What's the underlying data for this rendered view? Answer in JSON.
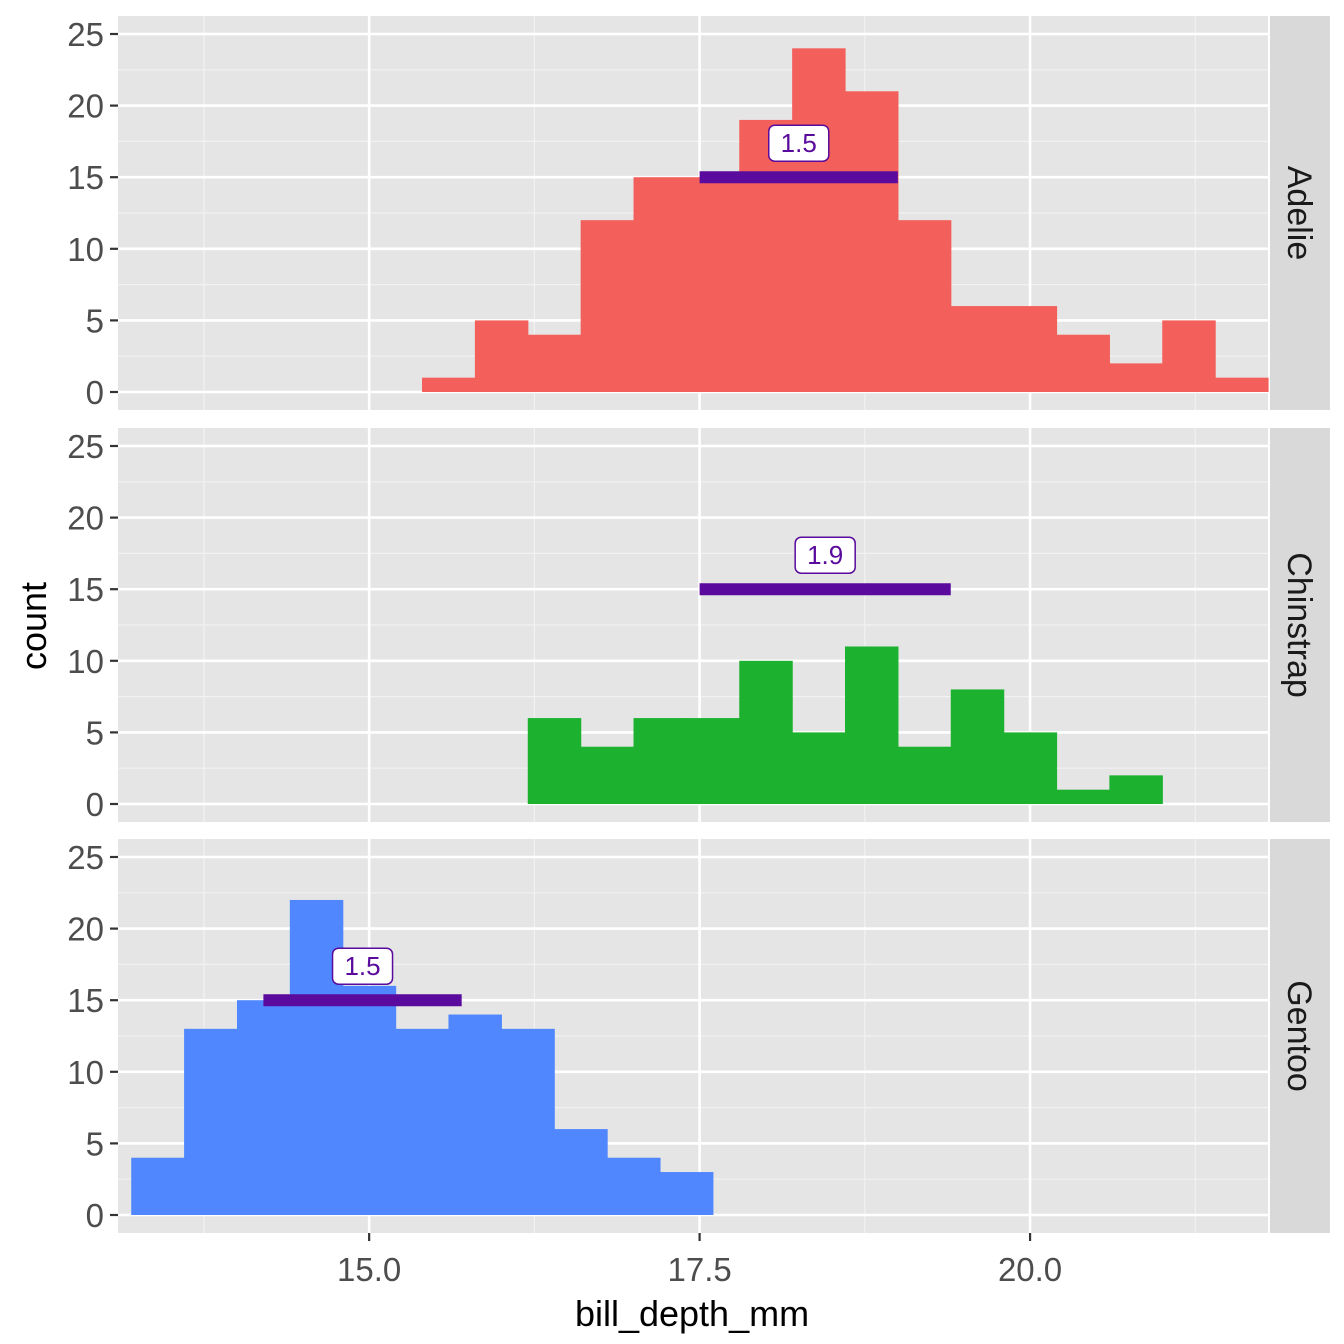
{
  "chart_data": {
    "type": "bar",
    "subtype": "faceted-histogram",
    "xlabel": "bill_depth_mm",
    "ylabel": "count",
    "xlim": [
      13.1,
      21.8
    ],
    "ylim": [
      0,
      25
    ],
    "x_ticks": [
      {
        "value": 15.0,
        "label": "15.0"
      },
      {
        "value": 17.5,
        "label": "17.5"
      },
      {
        "value": 20.0,
        "label": "20.0"
      }
    ],
    "y_ticks": [
      {
        "value": 0,
        "label": "0"
      },
      {
        "value": 5,
        "label": "5"
      },
      {
        "value": 10,
        "label": "10"
      },
      {
        "value": 15,
        "label": "15"
      },
      {
        "value": 20,
        "label": "20"
      },
      {
        "value": 25,
        "label": "25"
      }
    ],
    "bin_width": 0.4,
    "grid": true,
    "range_bar_color": "#5a0a9c",
    "facets": [
      {
        "name": "Adelie",
        "color": "#f3605b",
        "bin_start": 15.4,
        "counts": [
          1,
          5,
          4,
          12,
          15,
          15,
          19,
          24,
          21,
          12,
          6,
          6,
          4,
          2,
          5,
          1
        ],
        "range_bar": {
          "x_start": 17.5,
          "x_end": 19.0,
          "y": 15,
          "label": "1.5"
        }
      },
      {
        "name": "Chinstrap",
        "color": "#1cb12f",
        "bin_start": 16.2,
        "counts": [
          6,
          4,
          6,
          6,
          10,
          5,
          11,
          4,
          8,
          5,
          1,
          2
        ],
        "range_bar": {
          "x_start": 17.5,
          "x_end": 19.4,
          "y": 15,
          "label": "1.9"
        }
      },
      {
        "name": "Gentoo",
        "color": "#5087ff",
        "bin_start": 13.2,
        "counts": [
          4,
          13,
          15,
          22,
          16,
          13,
          14,
          13,
          6,
          4,
          3
        ],
        "range_bar": {
          "x_start": 14.2,
          "x_end": 15.7,
          "y": 15,
          "label": "1.5"
        }
      }
    ]
  }
}
